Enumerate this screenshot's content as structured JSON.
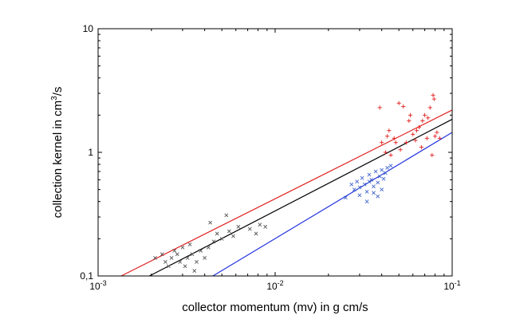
{
  "chart_data": {
    "type": "scatter",
    "title": "",
    "xlabel": "collector momentum (mv) in g cm/s",
    "ylabel": {
      "prefix": "collection kernel in cm",
      "sup": "3",
      "suffix": "/s"
    },
    "xscale": "log",
    "yscale": "log",
    "xlim": [
      0.001,
      0.1
    ],
    "ylim": [
      0.1,
      10
    ],
    "grid": false,
    "legend": "none",
    "x_ticks": [
      {
        "value": 0.001,
        "base": "10",
        "exp": "-3"
      },
      {
        "value": 0.01,
        "base": "10",
        "exp": "-2"
      },
      {
        "value": 0.1,
        "base": "10",
        "exp": "-1"
      }
    ],
    "y_ticks": [
      {
        "value": 0.1,
        "label": "0,1"
      },
      {
        "value": 1,
        "label": "1"
      },
      {
        "value": 10,
        "label": "10"
      }
    ],
    "series": [
      {
        "color": "#555555",
        "marker": "x",
        "points": [
          [
            0.0021,
            0.14
          ],
          [
            0.0023,
            0.15
          ],
          [
            0.0024,
            0.13
          ],
          [
            0.0025,
            0.12
          ],
          [
            0.0026,
            0.14
          ],
          [
            0.0027,
            0.16
          ],
          [
            0.0028,
            0.15
          ],
          [
            0.0029,
            0.13
          ],
          [
            0.003,
            0.17
          ],
          [
            0.0031,
            0.12
          ],
          [
            0.0032,
            0.14
          ],
          [
            0.0033,
            0.18
          ],
          [
            0.0034,
            0.15
          ],
          [
            0.0035,
            0.11
          ],
          [
            0.0036,
            0.13
          ],
          [
            0.0038,
            0.16
          ],
          [
            0.004,
            0.14
          ],
          [
            0.0042,
            0.17
          ],
          [
            0.0043,
            0.27
          ],
          [
            0.0045,
            0.19
          ],
          [
            0.0047,
            0.22
          ],
          [
            0.005,
            0.2
          ],
          [
            0.0053,
            0.31
          ],
          [
            0.0055,
            0.23
          ],
          [
            0.0058,
            0.21
          ],
          [
            0.0062,
            0.25
          ],
          [
            0.0072,
            0.24
          ],
          [
            0.0078,
            0.22
          ],
          [
            0.0082,
            0.26
          ],
          [
            0.0088,
            0.25
          ]
        ]
      },
      {
        "color": "#4466cc",
        "marker": "x",
        "points": [
          [
            0.025,
            0.43
          ],
          [
            0.027,
            0.55
          ],
          [
            0.028,
            0.5
          ],
          [
            0.029,
            0.58
          ],
          [
            0.03,
            0.52
          ],
          [
            0.031,
            0.62
          ],
          [
            0.032,
            0.55
          ],
          [
            0.033,
            0.48
          ],
          [
            0.034,
            0.66
          ],
          [
            0.035,
            0.6
          ],
          [
            0.036,
            0.53
          ],
          [
            0.037,
            0.7
          ],
          [
            0.038,
            0.57
          ],
          [
            0.039,
            0.64
          ],
          [
            0.04,
            0.72
          ],
          [
            0.041,
            0.61
          ],
          [
            0.042,
            0.68
          ],
          [
            0.043,
            0.75
          ],
          [
            0.03,
            0.45
          ],
          [
            0.033,
            0.4
          ],
          [
            0.036,
            0.47
          ],
          [
            0.038,
            0.44
          ],
          [
            0.04,
            0.5
          ],
          [
            0.034,
            0.58
          ],
          [
            0.045,
            0.78
          ]
        ]
      },
      {
        "color": "#e02020",
        "marker": "+",
        "points": [
          [
            0.039,
            2.3
          ],
          [
            0.04,
            1.2
          ],
          [
            0.042,
            1.0
          ],
          [
            0.043,
            1.35
          ],
          [
            0.044,
            1.5
          ],
          [
            0.045,
            0.95
          ],
          [
            0.047,
            1.3
          ],
          [
            0.05,
            2.5
          ],
          [
            0.051,
            1.05
          ],
          [
            0.053,
            2.35
          ],
          [
            0.055,
            1.2
          ],
          [
            0.057,
            1.8
          ],
          [
            0.058,
            2.0
          ],
          [
            0.06,
            1.4
          ],
          [
            0.062,
            1.25
          ],
          [
            0.065,
            1.6
          ],
          [
            0.067,
            1.1
          ],
          [
            0.07,
            2.0
          ],
          [
            0.072,
            1.3
          ],
          [
            0.073,
            1.9
          ],
          [
            0.075,
            2.3
          ],
          [
            0.077,
            0.95
          ],
          [
            0.078,
            2.9
          ],
          [
            0.079,
            2.7
          ],
          [
            0.08,
            1.35
          ],
          [
            0.082,
            1.45
          ],
          [
            0.085,
            1.3
          ],
          [
            0.068,
            1.8
          ],
          [
            0.063,
            1.5
          ],
          [
            0.048,
            1.2
          ]
        ]
      }
    ],
    "lines": [
      {
        "color": "#e02020",
        "from": [
          0.00135,
          0.1
        ],
        "to": [
          0.1,
          2.2
        ]
      },
      {
        "color": "#000000",
        "from": [
          0.00195,
          0.1
        ],
        "to": [
          0.1,
          1.85
        ]
      },
      {
        "color": "#2233dd",
        "from": [
          0.00445,
          0.1
        ],
        "to": [
          0.1,
          1.45
        ]
      }
    ]
  }
}
